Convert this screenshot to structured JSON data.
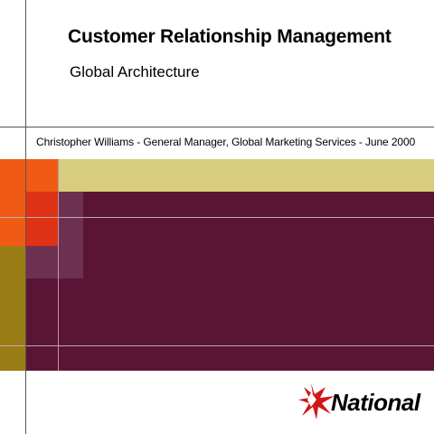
{
  "slide": {
    "title": "Customer Relationship Management",
    "subtitle": "Global Architecture",
    "byline": "Christopher Williams - General Manager, Global Marketing Services - June 2000"
  },
  "logo": {
    "brand_name": "National",
    "icon": "star-mark-icon",
    "color": "#d01818"
  },
  "palette": {
    "orange": "#f05a14",
    "tan": "#d8cc7e",
    "maroon": "#5a1535",
    "red": "#de3214",
    "mauve": "#6e3050",
    "olive": "#9a7c14"
  }
}
